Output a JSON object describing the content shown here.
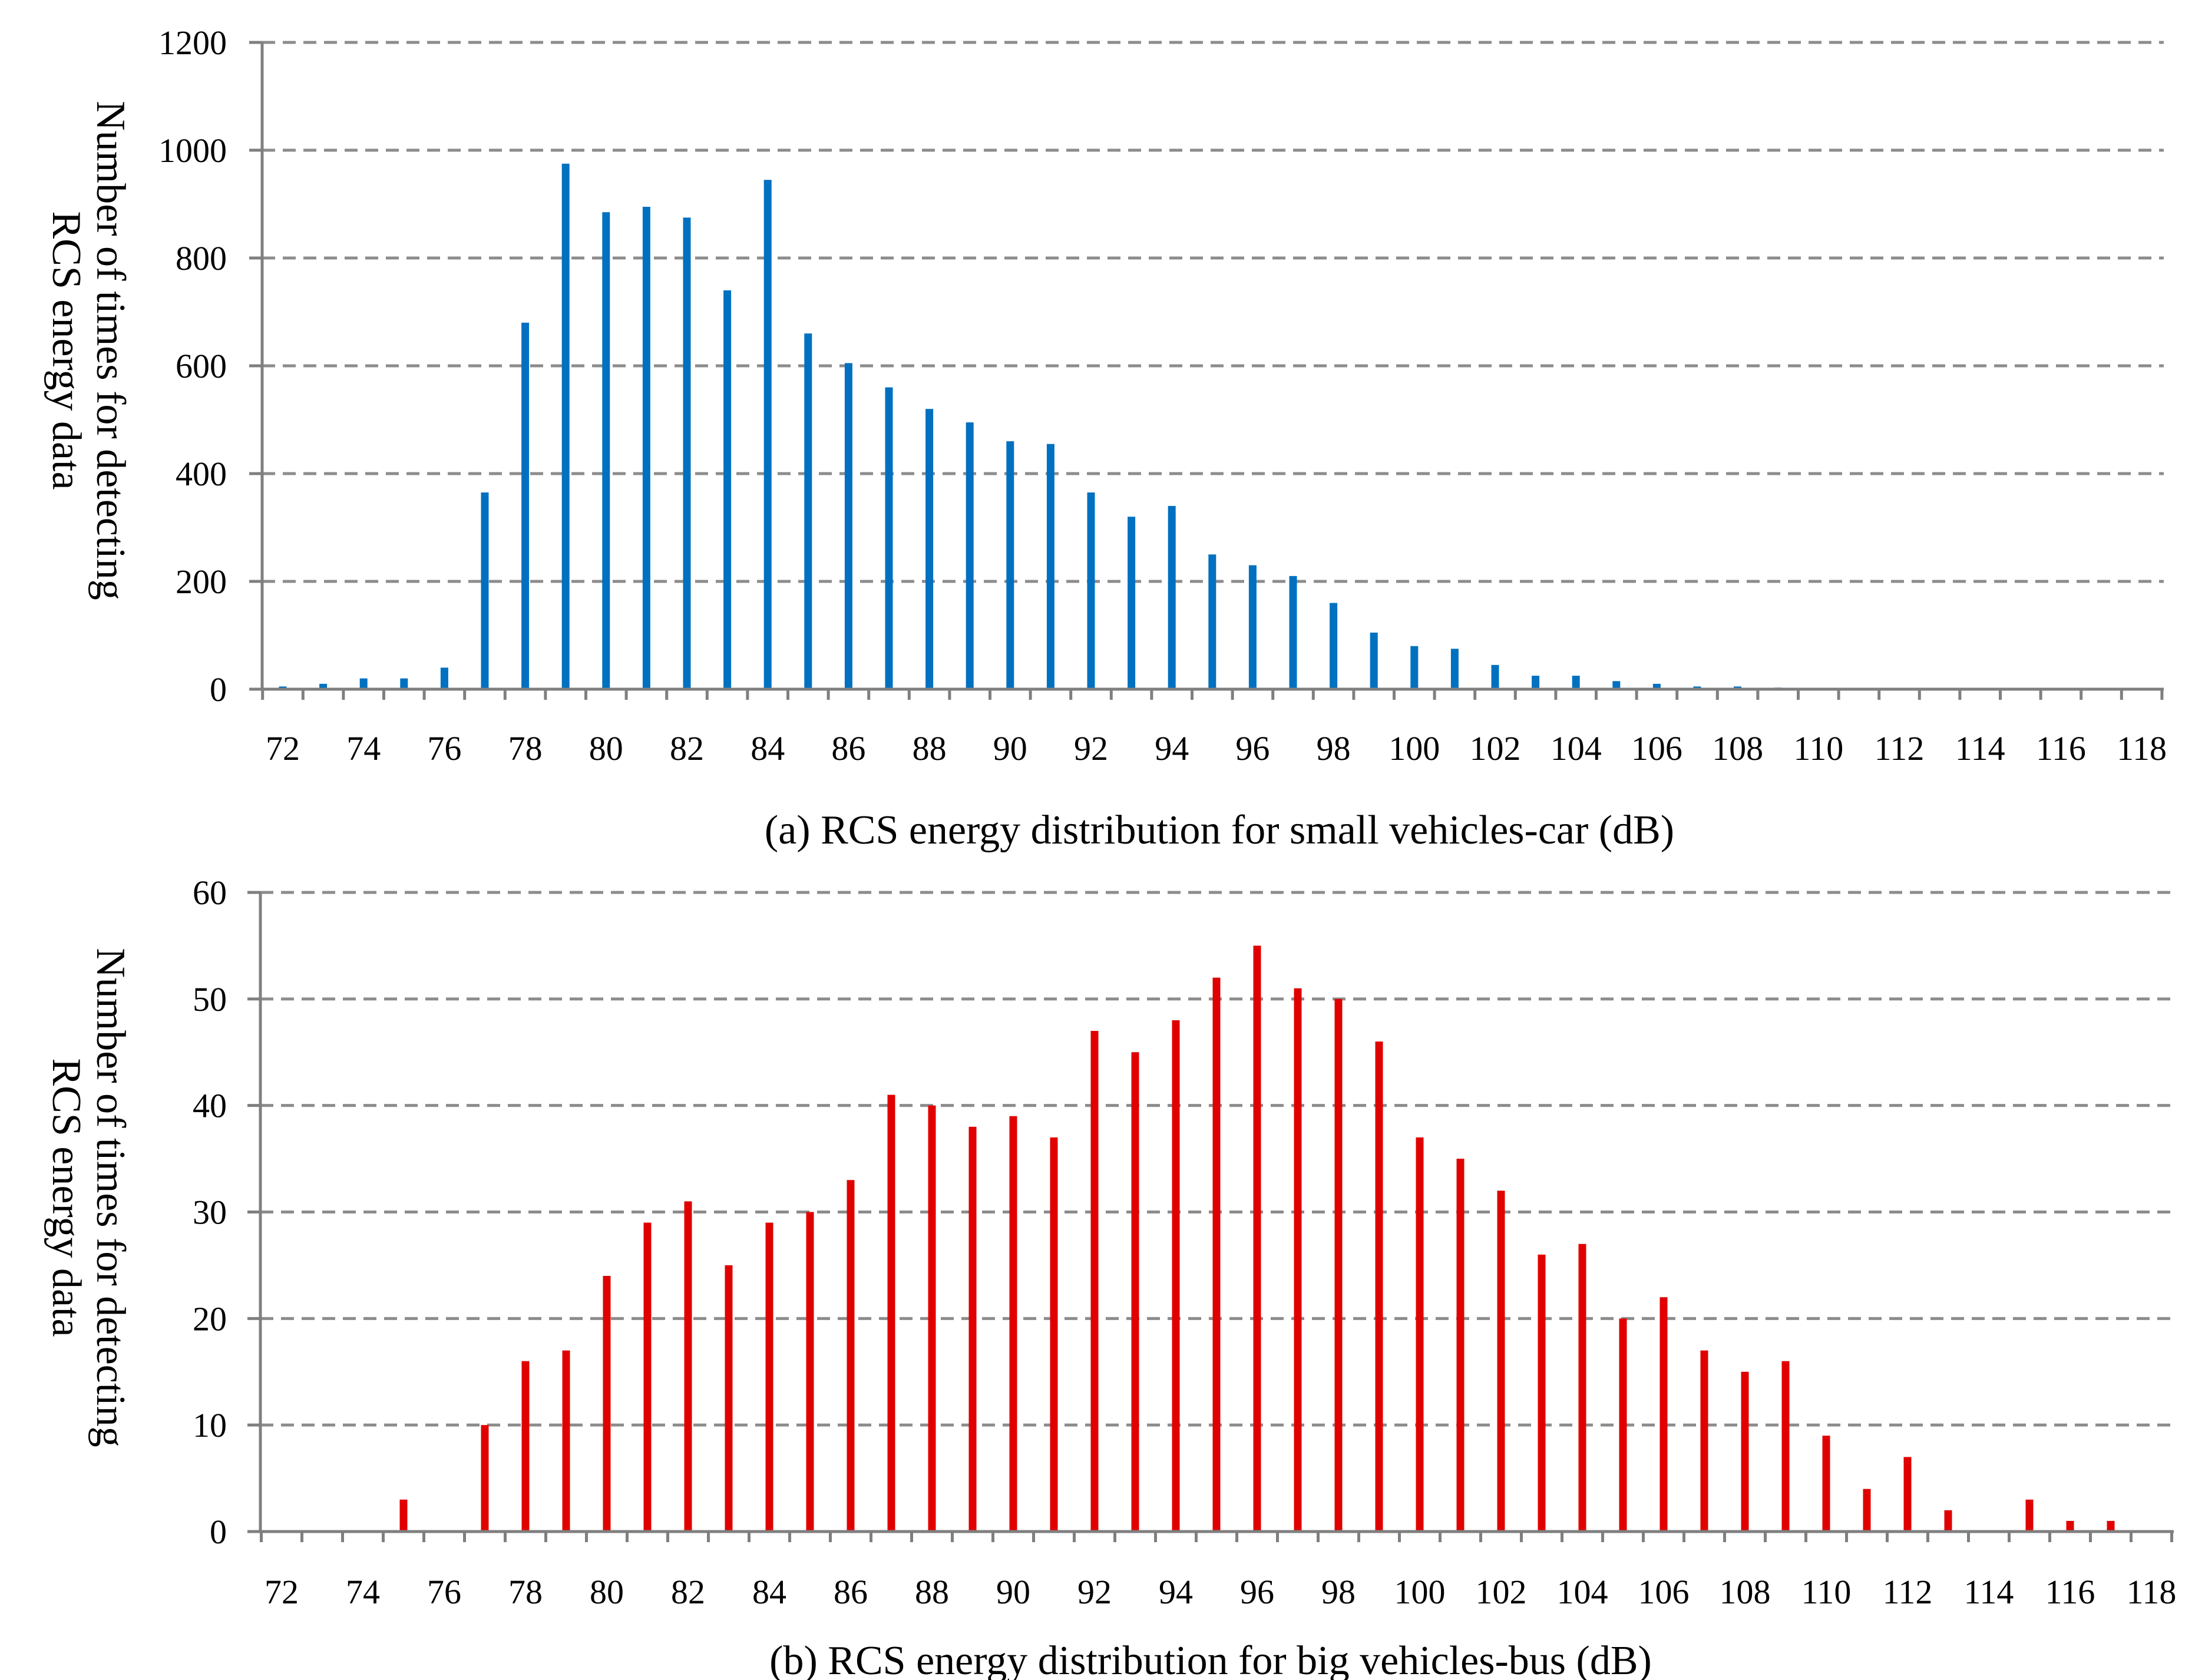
{
  "chart_data": [
    {
      "id": "car",
      "type": "bar",
      "title": "(a) RCS energy distribution for small vehicles-car (dB)",
      "xlabel": "(a) RCS energy distribution for small vehicles-car (dB)",
      "ylabel_line1": "Number of times for detecting",
      "ylabel_line2": "RCS energy data",
      "color": "#0070C0",
      "grid": true,
      "ylim": [
        0,
        1200
      ],
      "yticks": [
        0,
        200,
        400,
        600,
        800,
        1000,
        1200
      ],
      "xrange": [
        71,
        118
      ],
      "xtick_labels": [
        72,
        74,
        76,
        78,
        80,
        82,
        84,
        86,
        88,
        90,
        92,
        94,
        96,
        98,
        100,
        102,
        104,
        106,
        108,
        110,
        112,
        114,
        116,
        118
      ],
      "x": [
        72,
        73,
        74,
        75,
        76,
        77,
        78,
        79,
        80,
        81,
        82,
        83,
        84,
        85,
        86,
        87,
        88,
        89,
        90,
        91,
        92,
        93,
        94,
        95,
        96,
        97,
        98,
        99,
        100,
        101,
        102,
        103,
        104,
        105,
        106,
        107,
        108,
        109,
        110,
        111,
        112,
        113,
        114,
        115,
        116,
        117
      ],
      "values": [
        5,
        10,
        20,
        20,
        40,
        365,
        680,
        975,
        885,
        895,
        875,
        740,
        945,
        660,
        605,
        560,
        520,
        495,
        460,
        455,
        365,
        320,
        340,
        250,
        230,
        210,
        160,
        105,
        80,
        75,
        45,
        25,
        25,
        15,
        10,
        5,
        5,
        3,
        0,
        0,
        0,
        0,
        0,
        0,
        0,
        0
      ]
    },
    {
      "id": "bus",
      "type": "bar",
      "title": "(b) RCS energy distribution for big vehicles-bus (dB)",
      "xlabel": "(b) RCS energy distribution for big vehicles-bus (dB)",
      "ylabel_line1": "Number of times for detecting",
      "ylabel_line2": "RCS energy data",
      "color": "#E00000",
      "grid": true,
      "ylim": [
        0,
        60
      ],
      "yticks": [
        0,
        10,
        20,
        30,
        40,
        50,
        60
      ],
      "xrange": [
        71,
        118
      ],
      "xtick_labels": [
        72,
        74,
        76,
        78,
        80,
        82,
        84,
        86,
        88,
        90,
        92,
        94,
        96,
        98,
        100,
        102,
        104,
        106,
        108,
        110,
        112,
        114,
        116,
        118
      ],
      "x": [
        72,
        73,
        74,
        75,
        76,
        77,
        78,
        79,
        80,
        81,
        82,
        83,
        84,
        85,
        86,
        87,
        88,
        89,
        90,
        91,
        92,
        93,
        94,
        95,
        96,
        97,
        98,
        99,
        100,
        101,
        102,
        103,
        104,
        105,
        106,
        107,
        108,
        109,
        110,
        111,
        112,
        113,
        114,
        115,
        116,
        117
      ],
      "values": [
        0,
        0,
        0,
        3,
        0,
        10,
        16,
        17,
        24,
        29,
        31,
        25,
        29,
        30,
        33,
        41,
        40,
        38,
        39,
        37,
        47,
        45,
        48,
        52,
        55,
        51,
        50,
        46,
        37,
        35,
        32,
        26,
        27,
        20,
        22,
        17,
        15,
        16,
        9,
        4,
        7,
        2,
        0,
        3,
        1,
        1
      ]
    }
  ]
}
